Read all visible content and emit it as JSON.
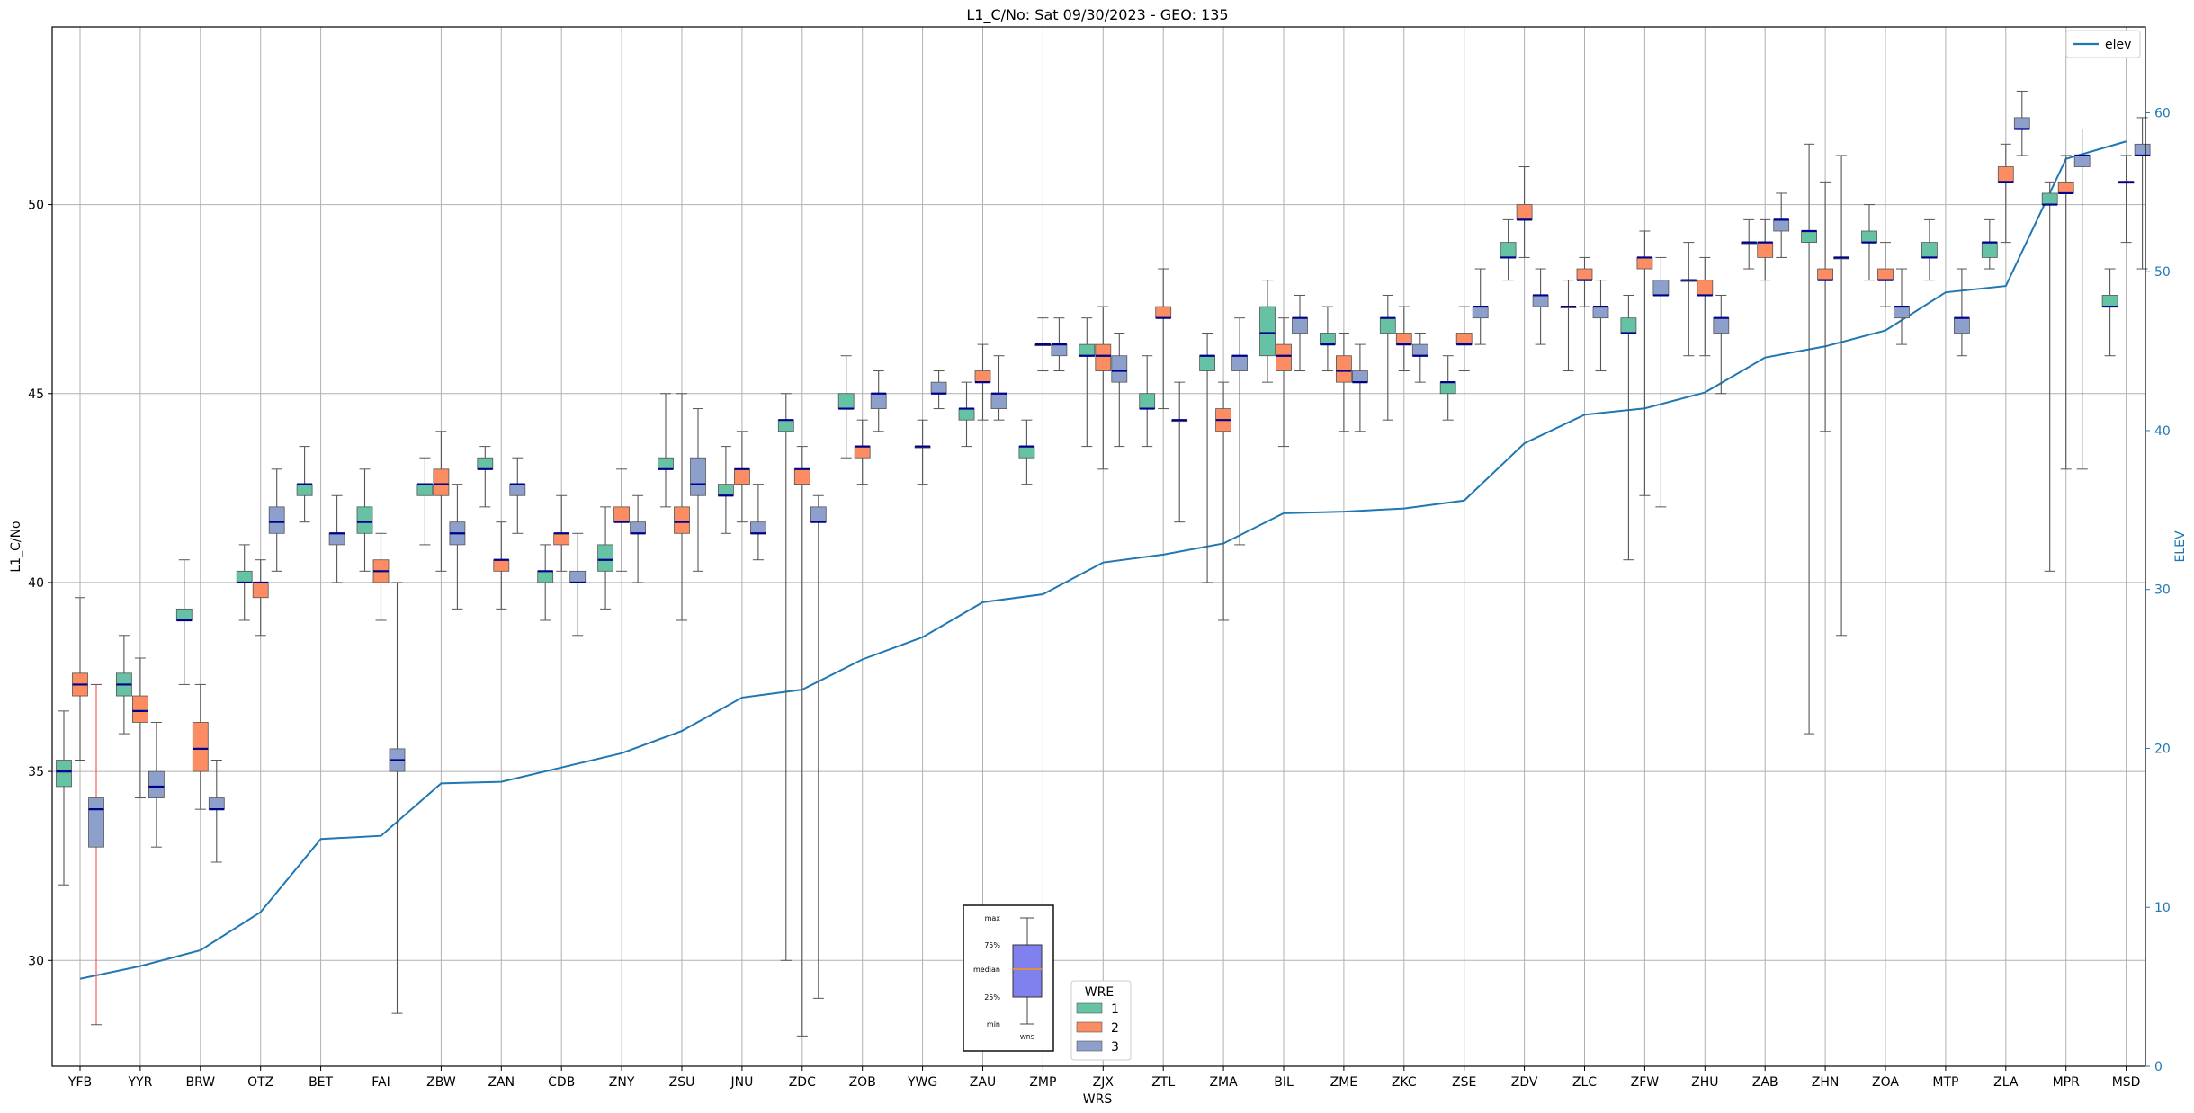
{
  "chart_data": {
    "type": "box",
    "title": "L1_C/No: Sat 09/30/2023 - GEO: 135",
    "xlabel": "WRS",
    "ylabel": "L1_C/No",
    "ylabel_right": "ELEV",
    "ylim": [
      27.2,
      54.7
    ],
    "ylim_right": [
      0,
      65.4
    ],
    "yticks": [
      "30",
      "35",
      "40",
      "45",
      "50"
    ],
    "yticks_right": [
      "0",
      "10",
      "20",
      "30",
      "40",
      "50",
      "60"
    ],
    "grid": true,
    "colors": {
      "1": "#66c2a5",
      "2": "#fc8d62",
      "3": "#8da0cb",
      "elev": "#1f77b4",
      "median": "#00008b",
      "whisker": "#555555",
      "whisker_highlight": "#ff4d4d"
    },
    "legend_elev": {
      "placement": "top-right",
      "label": "elev"
    },
    "legend_wre": {
      "placement": "bottom-center",
      "title": "WRE",
      "entries": [
        "1",
        "2",
        "3"
      ]
    },
    "key_box": {
      "labels": [
        "max",
        "75%",
        "median",
        "25%",
        "min"
      ],
      "xlabel": "WRS"
    },
    "categories": [
      "YFB",
      "YYR",
      "BRW",
      "OTZ",
      "BET",
      "FAI",
      "ZBW",
      "ZAN",
      "CDB",
      "ZNY",
      "ZSU",
      "JNU",
      "ZDC",
      "ZOB",
      "YWG",
      "ZAU",
      "ZMP",
      "ZJX",
      "ZTL",
      "ZMA",
      "BIL",
      "ZME",
      "ZKC",
      "ZSE",
      "ZDV",
      "ZLC",
      "ZFW",
      "ZHU",
      "ZAB",
      "ZHN",
      "ZOA",
      "MTP",
      "ZLA",
      "MPR",
      "MSD"
    ],
    "elev": [
      5.5,
      6.3,
      7.3,
      9.7,
      14.3,
      14.5,
      17.8,
      17.9,
      18.8,
      19.7,
      21.1,
      23.2,
      23.7,
      25.6,
      27.0,
      29.2,
      29.7,
      31.7,
      32.2,
      32.9,
      34.8,
      34.9,
      35.1,
      35.6,
      39.2,
      41.0,
      41.4,
      42.4,
      44.6,
      45.3,
      46.3,
      48.7,
      49.1,
      57.1,
      58.2
    ],
    "boxes": [
      {
        "wrs": "YFB",
        "wre": 1,
        "min": 32.0,
        "q1": 34.6,
        "median": 35.0,
        "q3": 35.3,
        "max": 36.6
      },
      {
        "wrs": "YFB",
        "wre": 2,
        "min": 35.3,
        "q1": 37.0,
        "median": 37.3,
        "q3": 37.6,
        "max": 39.6
      },
      {
        "wrs": "YFB",
        "wre": 3,
        "min": 28.3,
        "q1": 33.0,
        "median": 34.0,
        "q3": 34.3,
        "max": 37.3
      },
      {
        "wrs": "YYR",
        "wre": 1,
        "min": 36.0,
        "q1": 37.0,
        "median": 37.3,
        "q3": 37.6,
        "max": 38.6
      },
      {
        "wrs": "YYR",
        "wre": 2,
        "min": 34.3,
        "q1": 36.3,
        "median": 36.6,
        "q3": 37.0,
        "max": 38.0
      },
      {
        "wrs": "YYR",
        "wre": 3,
        "min": 33.0,
        "q1": 34.3,
        "median": 34.6,
        "q3": 35.0,
        "max": 36.3
      },
      {
        "wrs": "BRW",
        "wre": 1,
        "min": 37.3,
        "q1": 39.0,
        "median": 39.0,
        "q3": 39.3,
        "max": 40.6
      },
      {
        "wrs": "BRW",
        "wre": 2,
        "min": 34.0,
        "q1": 35.0,
        "median": 35.6,
        "q3": 36.3,
        "max": 37.3
      },
      {
        "wrs": "BRW",
        "wre": 3,
        "min": 32.6,
        "q1": 34.0,
        "median": 34.0,
        "q3": 34.3,
        "max": 35.3
      },
      {
        "wrs": "OTZ",
        "wre": 1,
        "min": 39.0,
        "q1": 40.0,
        "median": 40.0,
        "q3": 40.3,
        "max": 41.0
      },
      {
        "wrs": "OTZ",
        "wre": 2,
        "min": 38.6,
        "q1": 39.6,
        "median": 40.0,
        "q3": 40.0,
        "max": 40.6
      },
      {
        "wrs": "OTZ",
        "wre": 3,
        "min": 40.3,
        "q1": 41.3,
        "median": 41.6,
        "q3": 42.0,
        "max": 43.0
      },
      {
        "wrs": "BET",
        "wre": 1,
        "min": 41.6,
        "q1": 42.3,
        "median": 42.6,
        "q3": 42.6,
        "max": 43.6
      },
      {
        "wrs": "BET",
        "wre": 3,
        "min": 40.0,
        "q1": 41.0,
        "median": 41.3,
        "q3": 41.3,
        "max": 42.3
      },
      {
        "wrs": "FAI",
        "wre": 1,
        "min": 40.3,
        "q1": 41.3,
        "median": 41.6,
        "q3": 42.0,
        "max": 43.0
      },
      {
        "wrs": "FAI",
        "wre": 2,
        "min": 39.0,
        "q1": 40.0,
        "median": 40.3,
        "q3": 40.6,
        "max": 41.3
      },
      {
        "wrs": "FAI",
        "wre": 3,
        "min": 28.6,
        "q1": 35.0,
        "median": 35.3,
        "q3": 35.6,
        "max": 40.0
      },
      {
        "wrs": "ZBW",
        "wre": 1,
        "min": 41.0,
        "q1": 42.3,
        "median": 42.6,
        "q3": 42.6,
        "max": 43.3
      },
      {
        "wrs": "ZBW",
        "wre": 2,
        "min": 40.3,
        "q1": 42.3,
        "median": 42.6,
        "q3": 43.0,
        "max": 44.0
      },
      {
        "wrs": "ZBW",
        "wre": 3,
        "min": 39.3,
        "q1": 41.0,
        "median": 41.3,
        "q3": 41.6,
        "max": 42.6
      },
      {
        "wrs": "ZAN",
        "wre": 1,
        "min": 42.0,
        "q1": 43.0,
        "median": 43.0,
        "q3": 43.3,
        "max": 43.6
      },
      {
        "wrs": "ZAN",
        "wre": 2,
        "min": 39.3,
        "q1": 40.3,
        "median": 40.6,
        "q3": 40.6,
        "max": 41.6
      },
      {
        "wrs": "ZAN",
        "wre": 3,
        "min": 41.3,
        "q1": 42.3,
        "median": 42.6,
        "q3": 42.6,
        "max": 43.3
      },
      {
        "wrs": "CDB",
        "wre": 1,
        "min": 39.0,
        "q1": 40.0,
        "median": 40.3,
        "q3": 40.3,
        "max": 41.0
      },
      {
        "wrs": "CDB",
        "wre": 2,
        "min": 40.3,
        "q1": 41.0,
        "median": 41.3,
        "q3": 41.3,
        "max": 42.3
      },
      {
        "wrs": "CDB",
        "wre": 3,
        "min": 38.6,
        "q1": 40.0,
        "median": 40.0,
        "q3": 40.3,
        "max": 41.3
      },
      {
        "wrs": "ZNY",
        "wre": 1,
        "min": 39.3,
        "q1": 40.3,
        "median": 40.6,
        "q3": 41.0,
        "max": 42.0
      },
      {
        "wrs": "ZNY",
        "wre": 2,
        "min": 40.3,
        "q1": 41.6,
        "median": 41.6,
        "q3": 42.0,
        "max": 43.0
      },
      {
        "wrs": "ZNY",
        "wre": 3,
        "min": 40.0,
        "q1": 41.3,
        "median": 41.3,
        "q3": 41.6,
        "max": 42.3
      },
      {
        "wrs": "ZSU",
        "wre": 1,
        "min": 42.0,
        "q1": 43.0,
        "median": 43.0,
        "q3": 43.3,
        "max": 45.0
      },
      {
        "wrs": "ZSU",
        "wre": 2,
        "min": 39.0,
        "q1": 41.3,
        "median": 41.6,
        "q3": 42.0,
        "max": 45.0
      },
      {
        "wrs": "ZSU",
        "wre": 3,
        "min": 40.3,
        "q1": 42.3,
        "median": 42.6,
        "q3": 43.3,
        "max": 44.6
      },
      {
        "wrs": "JNU",
        "wre": 1,
        "min": 41.3,
        "q1": 42.3,
        "median": 42.3,
        "q3": 42.6,
        "max": 43.6
      },
      {
        "wrs": "JNU",
        "wre": 2,
        "min": 41.6,
        "q1": 42.6,
        "median": 43.0,
        "q3": 43.0,
        "max": 44.0
      },
      {
        "wrs": "JNU",
        "wre": 3,
        "min": 40.6,
        "q1": 41.3,
        "median": 41.3,
        "q3": 41.6,
        "max": 42.6
      },
      {
        "wrs": "ZDC",
        "wre": 1,
        "min": 30.0,
        "q1": 44.0,
        "median": 44.3,
        "q3": 44.3,
        "max": 45.0
      },
      {
        "wrs": "ZDC",
        "wre": 2,
        "min": 28.0,
        "q1": 42.6,
        "median": 43.0,
        "q3": 43.0,
        "max": 43.6
      },
      {
        "wrs": "ZDC",
        "wre": 3,
        "min": 29.0,
        "q1": 41.6,
        "median": 41.6,
        "q3": 42.0,
        "max": 42.3
      },
      {
        "wrs": "ZOB",
        "wre": 1,
        "min": 43.3,
        "q1": 44.6,
        "median": 44.6,
        "q3": 45.0,
        "max": 46.0
      },
      {
        "wrs": "ZOB",
        "wre": 2,
        "min": 42.6,
        "q1": 43.3,
        "median": 43.6,
        "q3": 43.6,
        "max": 44.3
      },
      {
        "wrs": "ZOB",
        "wre": 3,
        "min": 44.0,
        "q1": 44.6,
        "median": 45.0,
        "q3": 45.0,
        "max": 45.6
      },
      {
        "wrs": "YWG",
        "wre": 2,
        "min": 42.6,
        "q1": 43.6,
        "median": 43.6,
        "q3": 43.6,
        "max": 44.3
      },
      {
        "wrs": "YWG",
        "wre": 3,
        "min": 44.6,
        "q1": 45.0,
        "median": 45.0,
        "q3": 45.3,
        "max": 45.6
      },
      {
        "wrs": "ZAU",
        "wre": 1,
        "min": 43.6,
        "q1": 44.3,
        "median": 44.6,
        "q3": 44.6,
        "max": 45.3
      },
      {
        "wrs": "ZAU",
        "wre": 2,
        "min": 44.3,
        "q1": 45.3,
        "median": 45.3,
        "q3": 45.6,
        "max": 46.3
      },
      {
        "wrs": "ZAU",
        "wre": 3,
        "min": 44.3,
        "q1": 44.6,
        "median": 45.0,
        "q3": 45.0,
        "max": 46.0
      },
      {
        "wrs": "ZMP",
        "wre": 1,
        "min": 42.6,
        "q1": 43.3,
        "median": 43.6,
        "q3": 43.6,
        "max": 44.3
      },
      {
        "wrs": "ZMP",
        "wre": 2,
        "min": 45.6,
        "q1": 46.3,
        "median": 46.3,
        "q3": 46.3,
        "max": 47.0
      },
      {
        "wrs": "ZMP",
        "wre": 3,
        "min": 45.6,
        "q1": 46.0,
        "median": 46.3,
        "q3": 46.3,
        "max": 47.0
      },
      {
        "wrs": "ZJX",
        "wre": 1,
        "min": 43.6,
        "q1": 46.0,
        "median": 46.0,
        "q3": 46.3,
        "max": 47.0
      },
      {
        "wrs": "ZJX",
        "wre": 2,
        "min": 43.0,
        "q1": 45.6,
        "median": 46.0,
        "q3": 46.3,
        "max": 47.3
      },
      {
        "wrs": "ZJX",
        "wre": 3,
        "min": 43.6,
        "q1": 45.3,
        "median": 45.6,
        "q3": 46.0,
        "max": 46.6
      },
      {
        "wrs": "ZTL",
        "wre": 1,
        "min": 43.6,
        "q1": 44.6,
        "median": 44.6,
        "q3": 45.0,
        "max": 46.0
      },
      {
        "wrs": "ZTL",
        "wre": 2,
        "min": 44.6,
        "q1": 47.0,
        "median": 47.0,
        "q3": 47.3,
        "max": 48.3
      },
      {
        "wrs": "ZTL",
        "wre": 3,
        "min": 41.6,
        "q1": 44.3,
        "median": 44.3,
        "q3": 44.3,
        "max": 45.3
      },
      {
        "wrs": "ZMA",
        "wre": 1,
        "min": 40.0,
        "q1": 45.6,
        "median": 46.0,
        "q3": 46.0,
        "max": 46.6
      },
      {
        "wrs": "ZMA",
        "wre": 2,
        "min": 39.0,
        "q1": 44.0,
        "median": 44.3,
        "q3": 44.6,
        "max": 45.3
      },
      {
        "wrs": "ZMA",
        "wre": 3,
        "min": 41.0,
        "q1": 45.6,
        "median": 46.0,
        "q3": 46.0,
        "max": 47.0
      },
      {
        "wrs": "BIL",
        "wre": 1,
        "min": 45.3,
        "q1": 46.0,
        "median": 46.6,
        "q3": 47.3,
        "max": 48.0
      },
      {
        "wrs": "BIL",
        "wre": 2,
        "min": 43.6,
        "q1": 45.6,
        "median": 46.0,
        "q3": 46.3,
        "max": 47.0
      },
      {
        "wrs": "BIL",
        "wre": 3,
        "min": 45.6,
        "q1": 46.6,
        "median": 47.0,
        "q3": 47.0,
        "max": 47.6
      },
      {
        "wrs": "ZME",
        "wre": 1,
        "min": 45.6,
        "q1": 46.3,
        "median": 46.3,
        "q3": 46.6,
        "max": 47.3
      },
      {
        "wrs": "ZME",
        "wre": 2,
        "min": 44.0,
        "q1": 45.3,
        "median": 45.6,
        "q3": 46.0,
        "max": 46.6
      },
      {
        "wrs": "ZME",
        "wre": 3,
        "min": 44.0,
        "q1": 45.3,
        "median": 45.3,
        "q3": 45.6,
        "max": 46.3
      },
      {
        "wrs": "ZKC",
        "wre": 1,
        "min": 44.3,
        "q1": 46.6,
        "median": 47.0,
        "q3": 47.0,
        "max": 47.6
      },
      {
        "wrs": "ZKC",
        "wre": 2,
        "min": 45.6,
        "q1": 46.3,
        "median": 46.3,
        "q3": 46.6,
        "max": 47.3
      },
      {
        "wrs": "ZKC",
        "wre": 3,
        "min": 45.3,
        "q1": 46.0,
        "median": 46.0,
        "q3": 46.3,
        "max": 46.6
      },
      {
        "wrs": "ZSE",
        "wre": 1,
        "min": 44.3,
        "q1": 45.0,
        "median": 45.3,
        "q3": 45.3,
        "max": 46.0
      },
      {
        "wrs": "ZSE",
        "wre": 2,
        "min": 45.6,
        "q1": 46.3,
        "median": 46.3,
        "q3": 46.6,
        "max": 47.3
      },
      {
        "wrs": "ZSE",
        "wre": 3,
        "min": 46.3,
        "q1": 47.0,
        "median": 47.3,
        "q3": 47.3,
        "max": 48.3
      },
      {
        "wrs": "ZDV",
        "wre": 1,
        "min": 48.0,
        "q1": 48.6,
        "median": 48.6,
        "q3": 49.0,
        "max": 49.6
      },
      {
        "wrs": "ZDV",
        "wre": 2,
        "min": 48.6,
        "q1": 49.6,
        "median": 49.6,
        "q3": 50.0,
        "max": 51.0
      },
      {
        "wrs": "ZDV",
        "wre": 3,
        "min": 46.3,
        "q1": 47.3,
        "median": 47.6,
        "q3": 47.6,
        "max": 48.3
      },
      {
        "wrs": "ZLC",
        "wre": 1,
        "min": 45.6,
        "q1": 47.3,
        "median": 47.3,
        "q3": 47.3,
        "max": 48.0
      },
      {
        "wrs": "ZLC",
        "wre": 2,
        "min": 47.3,
        "q1": 48.0,
        "median": 48.0,
        "q3": 48.3,
        "max": 48.6
      },
      {
        "wrs": "ZLC",
        "wre": 3,
        "min": 45.6,
        "q1": 47.0,
        "median": 47.3,
        "q3": 47.3,
        "max": 48.0
      },
      {
        "wrs": "ZFW",
        "wre": 1,
        "min": 40.6,
        "q1": 46.6,
        "median": 46.6,
        "q3": 47.0,
        "max": 47.6
      },
      {
        "wrs": "ZFW",
        "wre": 2,
        "min": 42.3,
        "q1": 48.3,
        "median": 48.6,
        "q3": 48.6,
        "max": 49.3
      },
      {
        "wrs": "ZFW",
        "wre": 3,
        "min": 42.0,
        "q1": 47.6,
        "median": 47.6,
        "q3": 48.0,
        "max": 48.6
      },
      {
        "wrs": "ZHU",
        "wre": 1,
        "min": 46.0,
        "q1": 48.0,
        "median": 48.0,
        "q3": 48.0,
        "max": 49.0
      },
      {
        "wrs": "ZHU",
        "wre": 2,
        "min": 46.0,
        "q1": 47.6,
        "median": 47.6,
        "q3": 48.0,
        "max": 48.6
      },
      {
        "wrs": "ZHU",
        "wre": 3,
        "min": 45.0,
        "q1": 46.6,
        "median": 47.0,
        "q3": 47.0,
        "max": 47.6
      },
      {
        "wrs": "ZAB",
        "wre": 1,
        "min": 48.3,
        "q1": 49.0,
        "median": 49.0,
        "q3": 49.0,
        "max": 49.6
      },
      {
        "wrs": "ZAB",
        "wre": 2,
        "min": 48.0,
        "q1": 48.6,
        "median": 49.0,
        "q3": 49.0,
        "max": 49.6
      },
      {
        "wrs": "ZAB",
        "wre": 3,
        "min": 48.6,
        "q1": 49.3,
        "median": 49.6,
        "q3": 49.6,
        "max": 50.3
      },
      {
        "wrs": "ZHN",
        "wre": 1,
        "min": 36.0,
        "q1": 49.0,
        "median": 49.3,
        "q3": 49.3,
        "max": 51.6
      },
      {
        "wrs": "ZHN",
        "wre": 2,
        "min": 44.0,
        "q1": 48.0,
        "median": 48.0,
        "q3": 48.3,
        "max": 50.6
      },
      {
        "wrs": "ZHN",
        "wre": 3,
        "min": 38.6,
        "q1": 48.6,
        "median": 48.6,
        "q3": 48.6,
        "max": 51.3
      },
      {
        "wrs": "ZOA",
        "wre": 1,
        "min": 48.0,
        "q1": 49.0,
        "median": 49.0,
        "q3": 49.3,
        "max": 50.0
      },
      {
        "wrs": "ZOA",
        "wre": 2,
        "min": 47.3,
        "q1": 48.0,
        "median": 48.0,
        "q3": 48.3,
        "max": 49.0
      },
      {
        "wrs": "ZOA",
        "wre": 3,
        "min": 46.3,
        "q1": 47.0,
        "median": 47.3,
        "q3": 47.3,
        "max": 48.3
      },
      {
        "wrs": "MTP",
        "wre": 1,
        "min": 48.0,
        "q1": 48.6,
        "median": 48.6,
        "q3": 49.0,
        "max": 49.6
      },
      {
        "wrs": "MTP",
        "wre": 3,
        "min": 46.0,
        "q1": 46.6,
        "median": 47.0,
        "q3": 47.0,
        "max": 48.3
      },
      {
        "wrs": "ZLA",
        "wre": 1,
        "min": 48.3,
        "q1": 48.6,
        "median": 49.0,
        "q3": 49.0,
        "max": 49.6
      },
      {
        "wrs": "ZLA",
        "wre": 2,
        "min": 49.0,
        "q1": 50.6,
        "median": 50.6,
        "q3": 51.0,
        "max": 51.6
      },
      {
        "wrs": "ZLA",
        "wre": 3,
        "min": 51.3,
        "q1": 52.0,
        "median": 52.0,
        "q3": 52.3,
        "max": 53.0
      },
      {
        "wrs": "MPR",
        "wre": 1,
        "min": 40.3,
        "q1": 50.0,
        "median": 50.0,
        "q3": 50.3,
        "max": 50.6
      },
      {
        "wrs": "MPR",
        "wre": 2,
        "min": 43.0,
        "q1": 50.3,
        "median": 50.3,
        "q3": 50.6,
        "max": 51.3
      },
      {
        "wrs": "MPR",
        "wre": 3,
        "min": 43.0,
        "q1": 51.0,
        "median": 51.3,
        "q3": 51.3,
        "max": 52.0
      },
      {
        "wrs": "MSD",
        "wre": 1,
        "min": 46.0,
        "q1": 47.3,
        "median": 47.3,
        "q3": 47.6,
        "max": 48.3
      },
      {
        "wrs": "MSD",
        "wre": 2,
        "min": 49.0,
        "q1": 50.6,
        "median": 50.6,
        "q3": 50.6,
        "max": 51.3
      },
      {
        "wrs": "MSD",
        "wre": 3,
        "min": 48.3,
        "q1": 51.3,
        "median": 51.3,
        "q3": 51.6,
        "max": 52.3
      }
    ]
  }
}
